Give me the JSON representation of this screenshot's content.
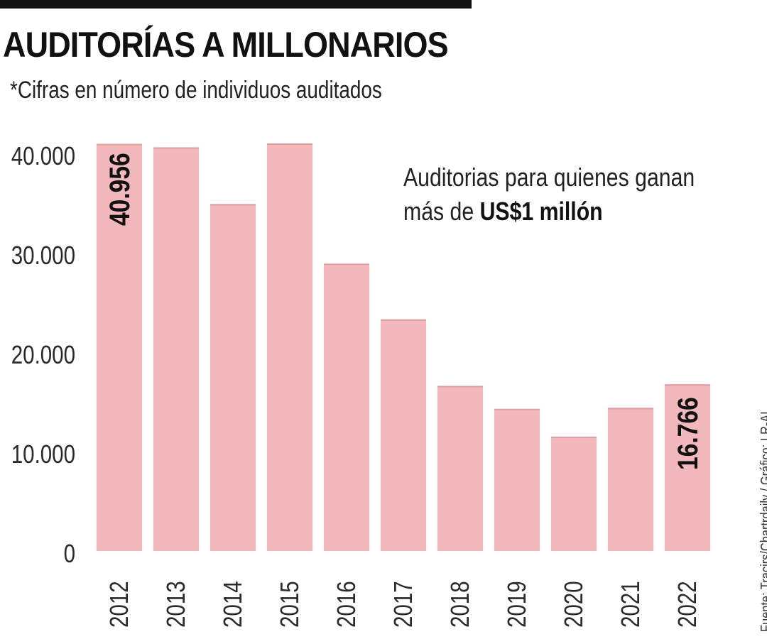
{
  "header": {
    "title": "AUDITORÍAS A MILLONARIOS",
    "subtitle": "*Cifras en número de individuos auditados"
  },
  "annotation": {
    "text_prefix": "Auditorias para quienes ganan",
    "text_line2_prefix": "más de ",
    "text_bold": "US$1 millón"
  },
  "source": "Fuente: Tracirs/Chartrdaily / Gráfico: LR-AL",
  "colors": {
    "bar": "#f2b8bc",
    "bar_top": "#e49aa1",
    "text": "#1a1a1a"
  },
  "chart_data": {
    "type": "bar",
    "categories": [
      "2012",
      "2013",
      "2014",
      "2015",
      "2016",
      "2017",
      "2018",
      "2019",
      "2020",
      "2021",
      "2022"
    ],
    "values": [
      40956,
      40600,
      34900,
      41000,
      28900,
      23300,
      16600,
      14300,
      11500,
      14400,
      16766
    ],
    "ylim": [
      0,
      42000
    ],
    "yticks": [
      0,
      10000,
      20000,
      30000,
      40000
    ],
    "ytick_labels": [
      "0",
      "10.000",
      "20.000",
      "30.000",
      "40.000"
    ],
    "data_labels": [
      {
        "category": "2012",
        "text": "40.956"
      },
      {
        "category": "2022",
        "text": "16.766"
      }
    ],
    "grid": false,
    "legend": "none"
  }
}
